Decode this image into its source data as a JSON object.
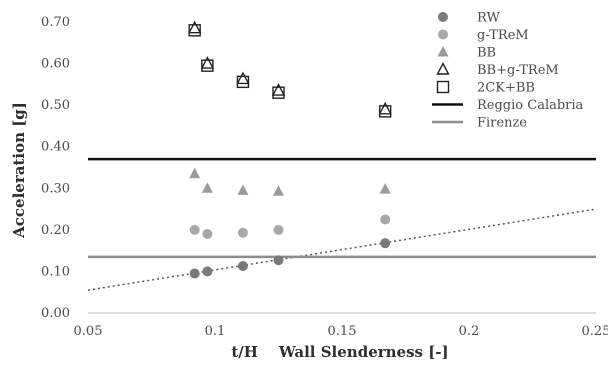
{
  "chart_data": {
    "type": "scatter",
    "xlabel": "t/H    Wall Slenderness [-]",
    "ylabel": "Acceleration [g]",
    "xlim": [
      0.05,
      0.25
    ],
    "ylim": [
      0.0,
      0.7
    ],
    "x_ticks": [
      "0.05",
      "0.1",
      "0.15",
      "0.2",
      "0.25"
    ],
    "x_tick_values": [
      0.05,
      0.1,
      0.15,
      0.2,
      0.25
    ],
    "y_ticks": [
      "0.00",
      "0.10",
      "0.20",
      "0.30",
      "0.40",
      "0.50",
      "0.60",
      "0.70"
    ],
    "y_tick_values": [
      0.0,
      0.1,
      0.2,
      0.3,
      0.4,
      0.5,
      0.6,
      0.7
    ],
    "grid": false,
    "legend_position": "top-right",
    "series": [
      {
        "name": "RW",
        "marker": "circle",
        "color": "#7a7a7a",
        "points": [
          [
            0.092,
            0.095
          ],
          [
            0.097,
            0.1
          ],
          [
            0.111,
            0.113
          ],
          [
            0.125,
            0.127
          ],
          [
            0.167,
            0.168
          ]
        ]
      },
      {
        "name": "g-TReM",
        "marker": "circle",
        "color": "#a8a8a8",
        "points": [
          [
            0.092,
            0.2
          ],
          [
            0.097,
            0.19
          ],
          [
            0.111,
            0.193
          ],
          [
            0.125,
            0.2
          ],
          [
            0.167,
            0.225
          ]
        ]
      },
      {
        "name": "BB",
        "marker": "triangle-filled",
        "color": "#9a9a9a",
        "points": [
          [
            0.092,
            0.335
          ],
          [
            0.097,
            0.3
          ],
          [
            0.111,
            0.295
          ],
          [
            0.125,
            0.293
          ],
          [
            0.167,
            0.298
          ]
        ]
      },
      {
        "name": "BB+g-TReM",
        "marker": "triangle-open",
        "color": "#222222",
        "points": [
          [
            0.092,
            0.685
          ],
          [
            0.097,
            0.6
          ],
          [
            0.111,
            0.563
          ],
          [
            0.125,
            0.535
          ],
          [
            0.167,
            0.49
          ]
        ]
      },
      {
        "name": "2CK+BB",
        "marker": "square-open",
        "color": "#222222",
        "points": [
          [
            0.092,
            0.68
          ],
          [
            0.097,
            0.595
          ],
          [
            0.111,
            0.556
          ],
          [
            0.125,
            0.53
          ],
          [
            0.167,
            0.485
          ]
        ]
      }
    ],
    "reference_lines": [
      {
        "name": "Reggio Calabria",
        "y": 0.37,
        "color": "#111111"
      },
      {
        "name": "Firenze",
        "y": 0.135,
        "color": "#8c8c8c"
      }
    ],
    "trend_line": {
      "style": "dotted",
      "color": "#555555",
      "from": [
        0.05,
        0.055
      ],
      "to": [
        0.25,
        0.25
      ]
    }
  }
}
